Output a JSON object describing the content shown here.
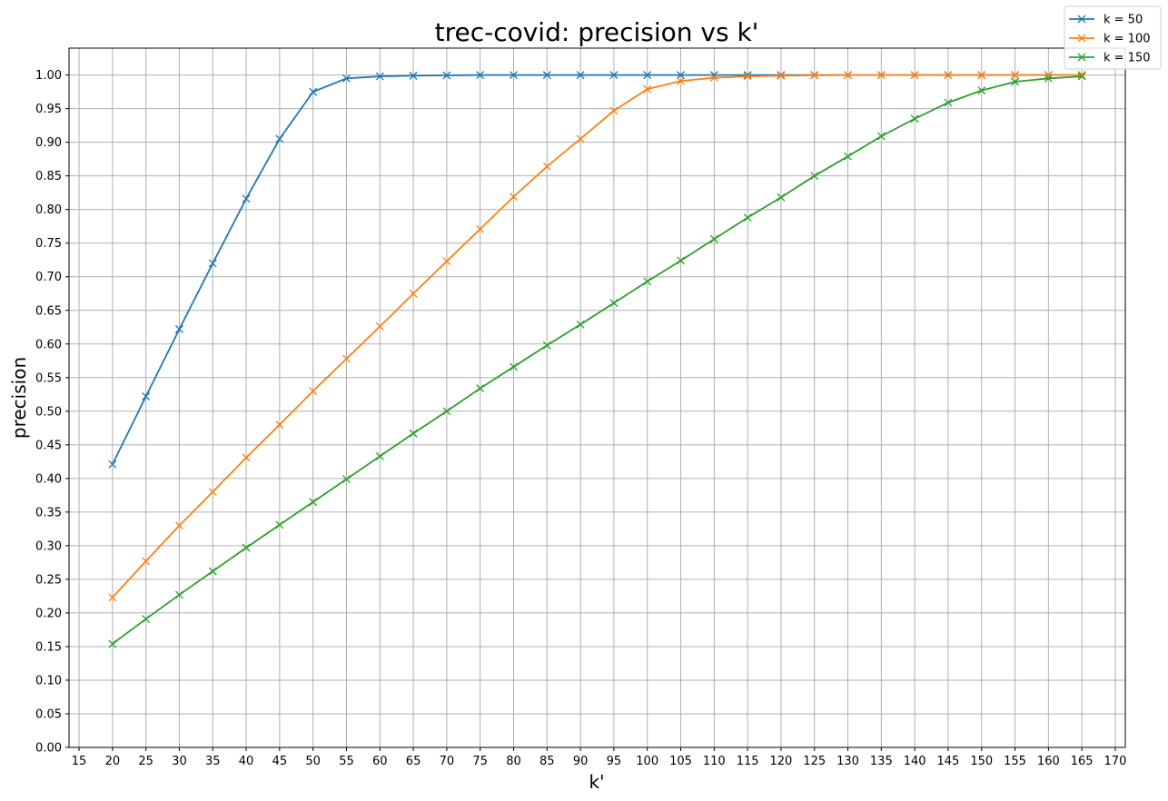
{
  "chart_data": {
    "type": "line",
    "title": "trec-covid: precision vs k'",
    "xlabel": "k'",
    "ylabel": "precision",
    "xlim": [
      13.5,
      171.5
    ],
    "ylim": [
      0.0,
      1.04
    ],
    "xticks": [
      15,
      20,
      25,
      30,
      35,
      40,
      45,
      50,
      55,
      60,
      65,
      70,
      75,
      80,
      85,
      90,
      95,
      100,
      105,
      110,
      115,
      120,
      125,
      130,
      135,
      140,
      145,
      150,
      155,
      160,
      165,
      170
    ],
    "yticks": [
      0.0,
      0.05,
      0.1,
      0.15,
      0.2,
      0.25,
      0.3,
      0.35,
      0.4,
      0.45,
      0.5,
      0.55,
      0.6,
      0.65,
      0.7,
      0.75,
      0.8,
      0.85,
      0.9,
      0.95,
      1.0
    ],
    "grid": true,
    "legend_position": "top-right",
    "marker": "x",
    "x": [
      20,
      25,
      30,
      35,
      40,
      45,
      50,
      55,
      60,
      65,
      70,
      75,
      80,
      85,
      90,
      95,
      100,
      105,
      110,
      115,
      120,
      125,
      130,
      135,
      140,
      145,
      150,
      155,
      160,
      165
    ],
    "series": [
      {
        "name": "k = 50",
        "color": "#1f77b4",
        "values": [
          0.421,
          0.522,
          0.622,
          0.72,
          0.816,
          0.905,
          0.975,
          0.995,
          0.998,
          0.999,
          0.9995,
          1.0,
          1.0,
          1.0,
          1.0,
          1.0,
          1.0,
          1.0,
          1.0,
          1.0,
          1.0,
          1.0,
          1.0,
          1.0,
          1.0,
          1.0,
          1.0,
          1.0,
          1.0,
          1.0
        ]
      },
      {
        "name": "k = 100",
        "color": "#ff7f0e",
        "values": [
          0.223,
          0.277,
          0.33,
          0.38,
          0.431,
          0.48,
          0.53,
          0.578,
          0.626,
          0.675,
          0.723,
          0.771,
          0.819,
          0.864,
          0.905,
          0.947,
          0.979,
          0.991,
          0.996,
          0.998,
          0.999,
          0.9995,
          1.0,
          1.0,
          1.0,
          1.0,
          1.0,
          1.0,
          1.0,
          1.0
        ]
      },
      {
        "name": "k = 150",
        "color": "#2ca02c",
        "values": [
          0.154,
          0.191,
          0.227,
          0.262,
          0.297,
          0.331,
          0.365,
          0.399,
          0.433,
          0.467,
          0.5,
          0.534,
          0.566,
          0.598,
          0.629,
          0.661,
          0.693,
          0.724,
          0.756,
          0.788,
          0.818,
          0.85,
          0.879,
          0.909,
          0.935,
          0.959,
          0.977,
          0.99,
          0.995,
          0.998
        ]
      }
    ]
  }
}
